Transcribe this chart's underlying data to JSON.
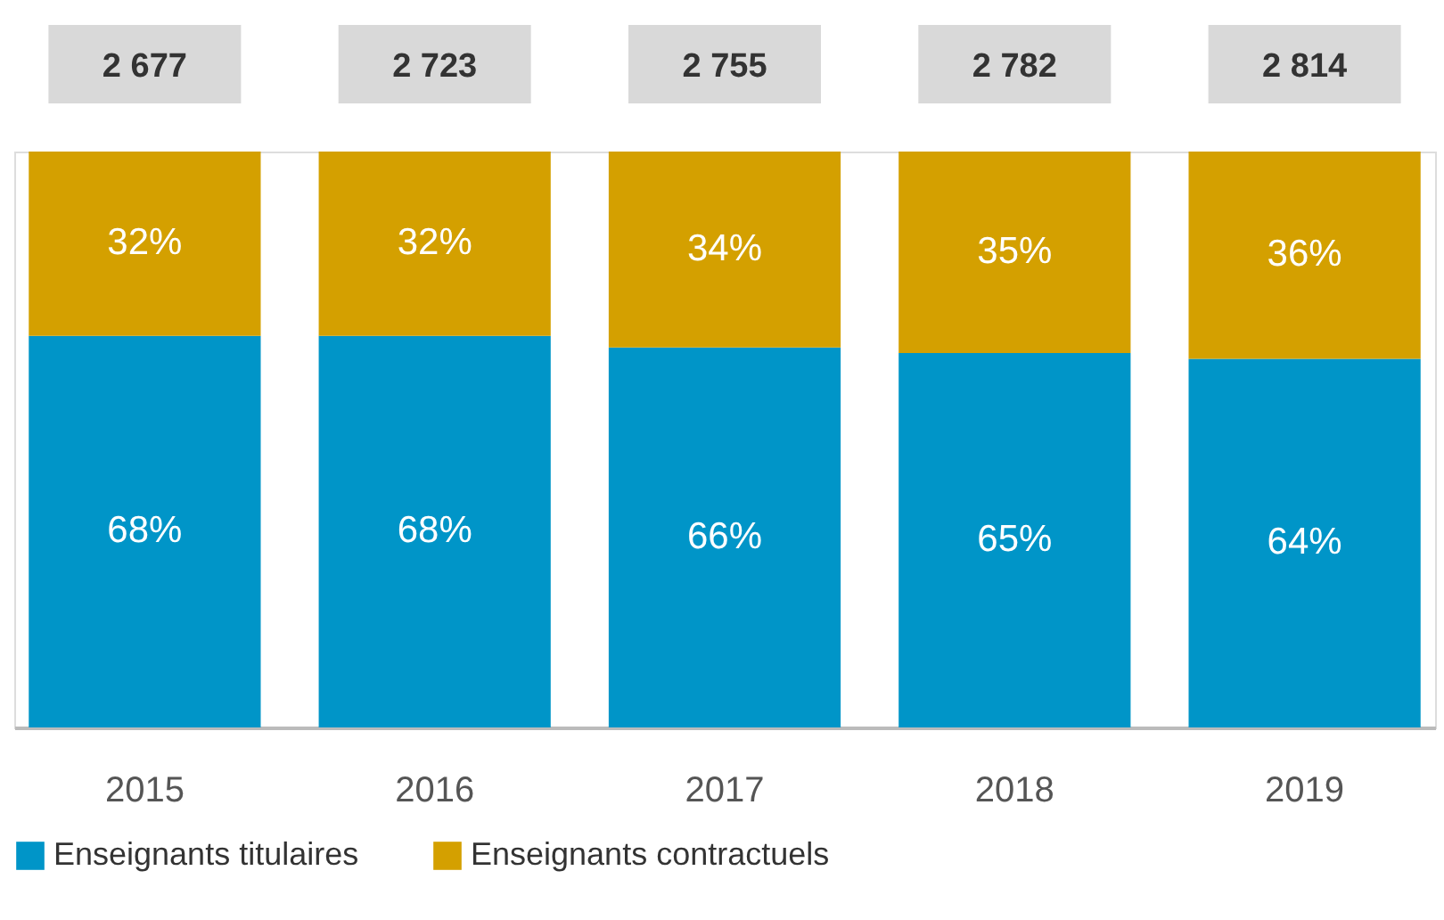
{
  "chart_data": {
    "type": "bar",
    "stacked": true,
    "categories": [
      "2015",
      "2016",
      "2017",
      "2018",
      "2019"
    ],
    "series": [
      {
        "name": "Enseignants titulaires",
        "color": "#0095c8",
        "values": [
          68,
          68,
          66,
          65,
          64
        ],
        "value_labels": [
          "68%",
          "68%",
          "66%",
          "65%",
          "64%"
        ]
      },
      {
        "name": "Enseignants contractuels",
        "color": "#d4a000",
        "values": [
          32,
          32,
          34,
          35,
          36
        ],
        "value_labels": [
          "32%",
          "32%",
          "34%",
          "35%",
          "36%"
        ]
      }
    ],
    "annotations": [
      "2 677",
      "2 723",
      "2 755",
      "2 782",
      "2 814"
    ],
    "legend": "bottom",
    "grid": false,
    "tick_labels": "x"
  }
}
